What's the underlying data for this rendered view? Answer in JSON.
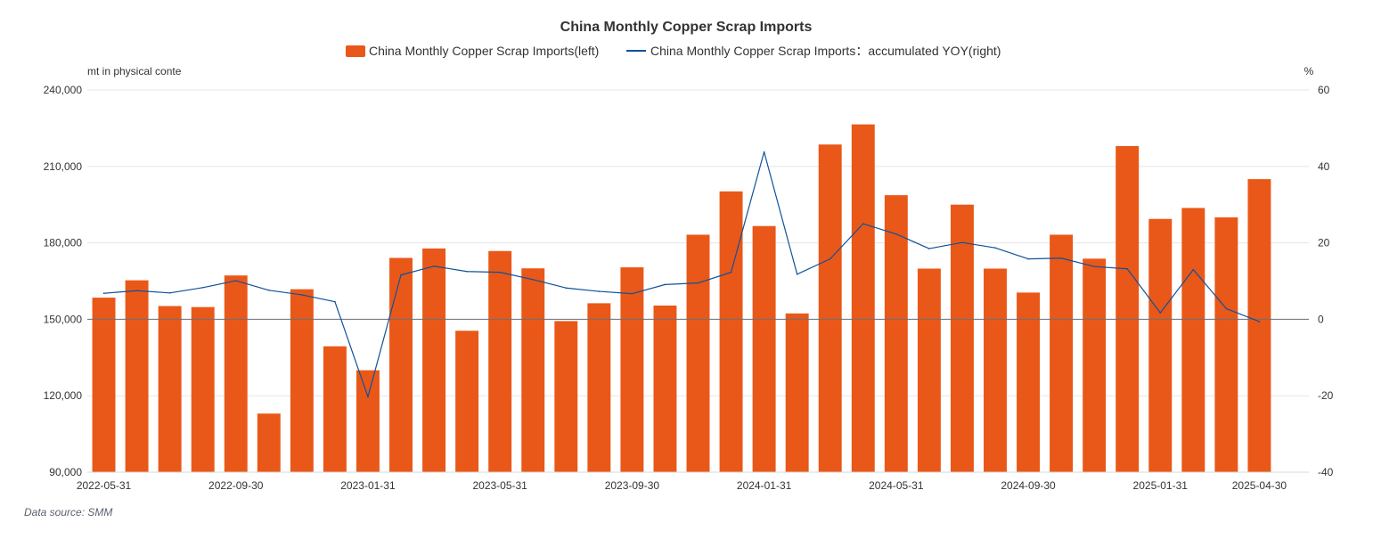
{
  "chart_data": {
    "type": "bar",
    "title": "China Monthly Copper Scrap Imports",
    "legend": {
      "placement": "top-center"
    },
    "y_left": {
      "name": "mt in physical conte",
      "min": 90000,
      "max": 240000,
      "ticks": [
        90000,
        120000,
        150000,
        180000,
        210000,
        240000
      ],
      "tick_labels": [
        "90,000",
        "120,000",
        "150,000",
        "180,000",
        "210,000",
        "240,000"
      ]
    },
    "y_right": {
      "name": "%",
      "min": -40,
      "max": 60,
      "ticks": [
        -40,
        -20,
        0,
        20,
        40,
        60
      ],
      "tick_labels": [
        "-40",
        "-20",
        "0",
        "20",
        "40",
        "60"
      ]
    },
    "x_tick_labels": [
      {
        "index": 0,
        "label": "2022-05-31"
      },
      {
        "index": 4,
        "label": "2022-09-30"
      },
      {
        "index": 8,
        "label": "2023-01-31"
      },
      {
        "index": 12,
        "label": "2023-05-31"
      },
      {
        "index": 16,
        "label": "2023-09-30"
      },
      {
        "index": 20,
        "label": "2024-01-31"
      },
      {
        "index": 24,
        "label": "2024-05-31"
      },
      {
        "index": 28,
        "label": "2024-09-30"
      },
      {
        "index": 32,
        "label": "2025-01-31"
      },
      {
        "index": 35,
        "label": "2025-04-30"
      }
    ],
    "categories": [
      "2022-05-31",
      "2022-06-30",
      "2022-07-31",
      "2022-08-31",
      "2022-09-30",
      "2022-10-31",
      "2022-11-30",
      "2022-12-31",
      "2023-01-31",
      "2023-02-28",
      "2023-03-31",
      "2023-04-30",
      "2023-05-31",
      "2023-06-30",
      "2023-07-31",
      "2023-08-31",
      "2023-09-30",
      "2023-10-31",
      "2023-11-30",
      "2023-12-31",
      "2024-01-31",
      "2024-02-29",
      "2024-03-31",
      "2024-04-30",
      "2024-05-31",
      "2024-06-30",
      "2024-07-31",
      "2024-08-31",
      "2024-09-30",
      "2024-10-31",
      "2024-11-30",
      "2024-12-31",
      "2025-01-31",
      "2025-02-28",
      "2025-03-31",
      "2025-04-30",
      "2025-05-31"
    ],
    "series": [
      {
        "name": "China Monthly Copper Scrap Imports(left)",
        "type": "bar",
        "axis": "left",
        "color": "#e95818",
        "values": [
          158500,
          165300,
          155200,
          154800,
          167200,
          113000,
          161800,
          139400,
          130000,
          174100,
          177800,
          145500,
          176800,
          170000,
          149300,
          156300,
          170400,
          155400,
          183200,
          200200,
          186600,
          152300,
          218600,
          226500,
          198700,
          169900,
          195000,
          169900,
          160500,
          183200,
          173800,
          218000,
          189400,
          193700,
          190000,
          205000,
          null
        ]
      },
      {
        "name": "China Monthly Copper Scrap Imports：accumulated YOY(right)",
        "type": "line",
        "axis": "right",
        "color": "#10519a",
        "values": [
          6.8,
          7.5,
          6.9,
          8.3,
          10.1,
          7.6,
          6.4,
          4.6,
          -20.3,
          11.6,
          13.9,
          12.5,
          12.3,
          10.4,
          8.2,
          7.3,
          6.7,
          9.1,
          9.5,
          12.3,
          43.8,
          11.8,
          15.8,
          25.0,
          22.3,
          18.5,
          20.1,
          18.7,
          15.8,
          16.0,
          13.8,
          13.2,
          1.7,
          13.0,
          2.8,
          -0.6,
          null
        ]
      }
    ]
  },
  "source_note": "Data source:  SMM"
}
